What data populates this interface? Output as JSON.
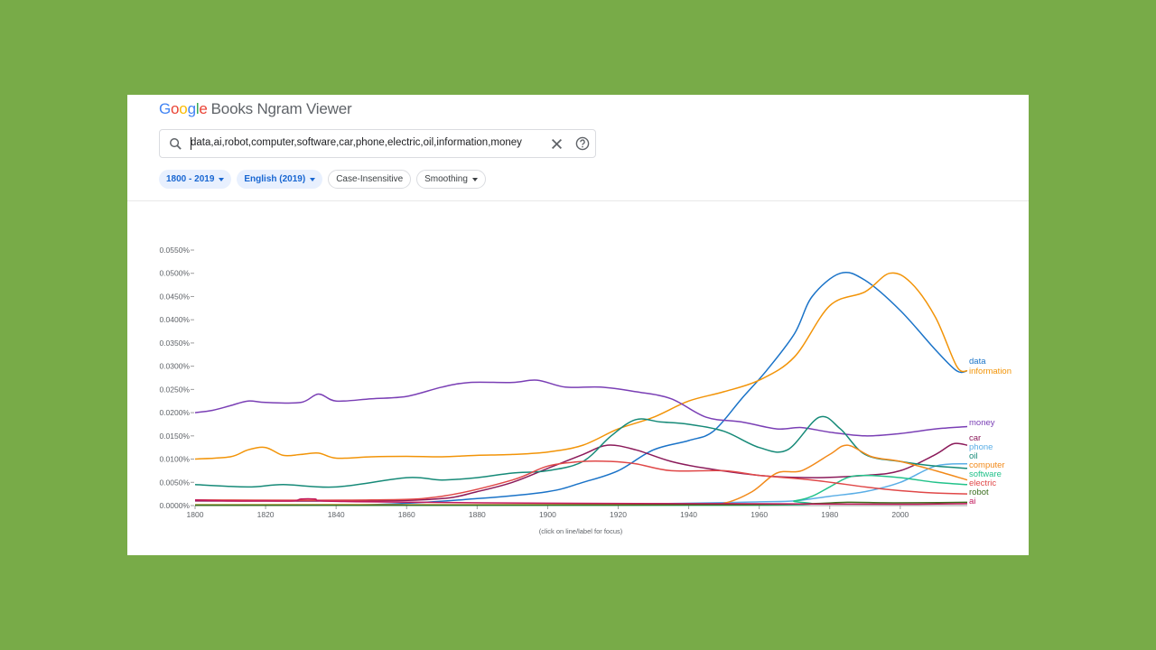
{
  "header": {
    "logo_google": "Google",
    "logo_rest": "Books Ngram Viewer",
    "search_value": "data,ai,robot,computer,software,car,phone,electric,oil,information,money",
    "search_icon": "search-icon",
    "clear_icon": "close-icon",
    "help_icon": "help-icon"
  },
  "filters": {
    "years_label": "1800 - 2019",
    "corpus_label": "English (2019)",
    "case_label": "Case-Insensitive",
    "smoothing_label": "Smoothing"
  },
  "colors": {
    "google_blue": "#4285f4",
    "google_red": "#ea4335",
    "google_yellow": "#fbbc05",
    "google_green": "#34a853"
  },
  "chart_data": {
    "type": "line",
    "xlabel": "(click on line/label for focus)",
    "ylabel": "",
    "xlim": [
      1800,
      2019
    ],
    "ylim": [
      0,
      0.055
    ],
    "xticks": [
      1800,
      1820,
      1840,
      1860,
      1880,
      1900,
      1920,
      1940,
      1960,
      1980,
      2000
    ],
    "yticks": [
      "0.0000%",
      "0.0050%",
      "0.0100%",
      "0.0150%",
      "0.0200%",
      "0.0250%",
      "0.0300%",
      "0.0350%",
      "0.0400%",
      "0.0450%",
      "0.0500%",
      "0.0550%"
    ],
    "grid": false,
    "legend": "right-end labels",
    "series": [
      {
        "name": "data",
        "color": "#1a73c8",
        "x": [
          1800,
          1850,
          1880,
          1900,
          1910,
          1920,
          1930,
          1940,
          1947,
          1955,
          1962,
          1970,
          1975,
          1983,
          1990,
          2000,
          2010,
          2016,
          2019
        ],
        "y": [
          0.0001,
          0.0002,
          0.0015,
          0.003,
          0.005,
          0.0075,
          0.012,
          0.014,
          0.016,
          0.023,
          0.029,
          0.037,
          0.045,
          0.05,
          0.0485,
          0.042,
          0.0335,
          0.029,
          0.029
        ]
      },
      {
        "name": "information",
        "color": "#f29408",
        "x": [
          1800,
          1810,
          1815,
          1820,
          1825,
          1830,
          1835,
          1840,
          1850,
          1860,
          1870,
          1880,
          1890,
          1900,
          1910,
          1920,
          1930,
          1940,
          1950,
          1960,
          1970,
          1980,
          1990,
          1997,
          2003,
          2010,
          2016,
          2019
        ],
        "y": [
          0.01,
          0.0105,
          0.012,
          0.0125,
          0.0108,
          0.011,
          0.0113,
          0.0102,
          0.0105,
          0.0106,
          0.0105,
          0.0108,
          0.011,
          0.0115,
          0.013,
          0.0165,
          0.019,
          0.0225,
          0.0245,
          0.027,
          0.032,
          0.043,
          0.046,
          0.05,
          0.048,
          0.0405,
          0.03,
          0.029
        ]
      },
      {
        "name": "money",
        "color": "#7a3fb5",
        "x": [
          1800,
          1805,
          1810,
          1815,
          1820,
          1830,
          1835,
          1840,
          1850,
          1860,
          1870,
          1878,
          1890,
          1897,
          1905,
          1915,
          1925,
          1935,
          1945,
          1955,
          1965,
          1972,
          1980,
          1990,
          2000,
          2010,
          2019
        ],
        "y": [
          0.02,
          0.0205,
          0.0215,
          0.0225,
          0.0222,
          0.0222,
          0.024,
          0.0225,
          0.023,
          0.0235,
          0.0255,
          0.0265,
          0.0265,
          0.027,
          0.0255,
          0.0255,
          0.0245,
          0.023,
          0.019,
          0.018,
          0.0165,
          0.0168,
          0.0158,
          0.015,
          0.0155,
          0.0165,
          0.017
        ]
      },
      {
        "name": "car",
        "color": "#8b1a5a",
        "x": [
          1800,
          1850,
          1870,
          1880,
          1890,
          1900,
          1910,
          1917,
          1925,
          1935,
          1945,
          1960,
          1975,
          1990,
          2000,
          2010,
          2015,
          2019
        ],
        "y": [
          0.001,
          0.001,
          0.0015,
          0.003,
          0.005,
          0.008,
          0.011,
          0.013,
          0.012,
          0.0095,
          0.008,
          0.0065,
          0.006,
          0.0065,
          0.0075,
          0.011,
          0.0133,
          0.013
        ]
      },
      {
        "name": "phone",
        "color": "#5aaee6",
        "x": [
          1800,
          1900,
          1940,
          1960,
          1970,
          1980,
          1990,
          2000,
          2010,
          2019
        ],
        "y": [
          0.0001,
          0.0002,
          0.0005,
          0.0008,
          0.001,
          0.002,
          0.003,
          0.005,
          0.0085,
          0.009
        ]
      },
      {
        "name": "oil",
        "color": "#168a78",
        "x": [
          1800,
          1815,
          1825,
          1840,
          1860,
          1870,
          1880,
          1890,
          1900,
          1910,
          1918,
          1925,
          1932,
          1940,
          1950,
          1960,
          1968,
          1977,
          1983,
          1990,
          2000,
          2010,
          2019
        ],
        "y": [
          0.0045,
          0.004,
          0.0045,
          0.004,
          0.006,
          0.0055,
          0.006,
          0.007,
          0.0075,
          0.0095,
          0.015,
          0.0185,
          0.018,
          0.0175,
          0.016,
          0.0125,
          0.012,
          0.019,
          0.0165,
          0.011,
          0.0095,
          0.0085,
          0.008
        ]
      },
      {
        "name": "computer",
        "color": "#f28a1a",
        "x": [
          1800,
          1940,
          1950,
          1958,
          1965,
          1972,
          1980,
          1985,
          1992,
          2000,
          2010,
          2019
        ],
        "y": [
          0.0002,
          0.0002,
          0.0005,
          0.003,
          0.007,
          0.0075,
          0.011,
          0.013,
          0.0105,
          0.0095,
          0.0075,
          0.0055
        ]
      },
      {
        "name": "software",
        "color": "#22c28a",
        "x": [
          1800,
          1960,
          1970,
          1975,
          1980,
          1985,
          1990,
          2000,
          2010,
          2019
        ],
        "y": [
          0.0001,
          0.0001,
          0.001,
          0.002,
          0.004,
          0.006,
          0.0065,
          0.006,
          0.005,
          0.0045
        ]
      },
      {
        "name": "electric",
        "color": "#e04848",
        "x": [
          1800,
          1850,
          1870,
          1890,
          1900,
          1910,
          1918,
          1925,
          1935,
          1950,
          1960,
          1975,
          1990,
          2000,
          2010,
          2019
        ],
        "y": [
          0.0012,
          0.0012,
          0.002,
          0.0055,
          0.0085,
          0.0095,
          0.0095,
          0.009,
          0.0075,
          0.0075,
          0.0065,
          0.0055,
          0.004,
          0.0032,
          0.0027,
          0.0025
        ]
      },
      {
        "name": "robot",
        "color": "#3a6e1e",
        "x": [
          1800,
          1920,
          1960,
          1975,
          1985,
          1995,
          2005,
          2019
        ],
        "y": [
          5e-05,
          0.0001,
          0.0002,
          0.0004,
          0.0007,
          0.0006,
          0.0006,
          0.0007
        ]
      },
      {
        "name": "ai",
        "color": "#c2185b",
        "x": [
          1800,
          1810,
          1820,
          1828,
          1830,
          1834,
          1836,
          1850,
          1900,
          1950,
          2000,
          2019
        ],
        "y": [
          0.0012,
          0.001,
          0.001,
          0.001,
          0.0014,
          0.0014,
          0.001,
          0.0008,
          0.0005,
          0.0004,
          0.0003,
          0.0004
        ]
      }
    ],
    "end_labels": [
      "data",
      "information",
      "money",
      "car",
      "phone",
      "oil",
      "computer",
      "software",
      "electric",
      "robot",
      "ai"
    ]
  }
}
